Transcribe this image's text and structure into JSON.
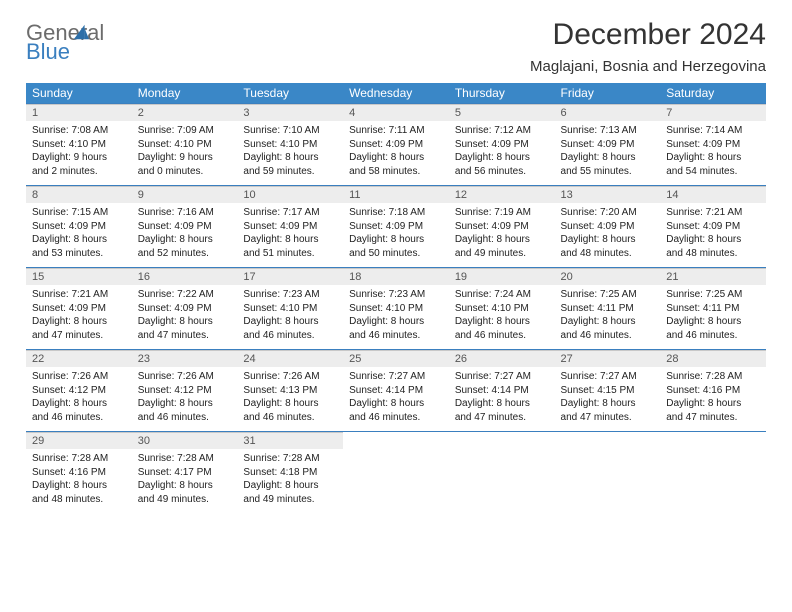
{
  "brand": {
    "line1": "General",
    "line2": "Blue"
  },
  "title": "December 2024",
  "location": "Maglajani, Bosnia and Herzegovina",
  "colors": {
    "header_bg": "#3a87c7",
    "header_text": "#ffffff",
    "daynum_bg": "#ededed",
    "rule": "#3a7fbf",
    "brand_gray": "#6c6c6c",
    "brand_blue": "#3a7fbf"
  },
  "weekdays": [
    "Sunday",
    "Monday",
    "Tuesday",
    "Wednesday",
    "Thursday",
    "Friday",
    "Saturday"
  ],
  "weeks": [
    [
      {
        "n": "1",
        "sr": "Sunrise: 7:08 AM",
        "ss": "Sunset: 4:10 PM",
        "dl": "Daylight: 9 hours and 2 minutes."
      },
      {
        "n": "2",
        "sr": "Sunrise: 7:09 AM",
        "ss": "Sunset: 4:10 PM",
        "dl": "Daylight: 9 hours and 0 minutes."
      },
      {
        "n": "3",
        "sr": "Sunrise: 7:10 AM",
        "ss": "Sunset: 4:10 PM",
        "dl": "Daylight: 8 hours and 59 minutes."
      },
      {
        "n": "4",
        "sr": "Sunrise: 7:11 AM",
        "ss": "Sunset: 4:09 PM",
        "dl": "Daylight: 8 hours and 58 minutes."
      },
      {
        "n": "5",
        "sr": "Sunrise: 7:12 AM",
        "ss": "Sunset: 4:09 PM",
        "dl": "Daylight: 8 hours and 56 minutes."
      },
      {
        "n": "6",
        "sr": "Sunrise: 7:13 AM",
        "ss": "Sunset: 4:09 PM",
        "dl": "Daylight: 8 hours and 55 minutes."
      },
      {
        "n": "7",
        "sr": "Sunrise: 7:14 AM",
        "ss": "Sunset: 4:09 PM",
        "dl": "Daylight: 8 hours and 54 minutes."
      }
    ],
    [
      {
        "n": "8",
        "sr": "Sunrise: 7:15 AM",
        "ss": "Sunset: 4:09 PM",
        "dl": "Daylight: 8 hours and 53 minutes."
      },
      {
        "n": "9",
        "sr": "Sunrise: 7:16 AM",
        "ss": "Sunset: 4:09 PM",
        "dl": "Daylight: 8 hours and 52 minutes."
      },
      {
        "n": "10",
        "sr": "Sunrise: 7:17 AM",
        "ss": "Sunset: 4:09 PM",
        "dl": "Daylight: 8 hours and 51 minutes."
      },
      {
        "n": "11",
        "sr": "Sunrise: 7:18 AM",
        "ss": "Sunset: 4:09 PM",
        "dl": "Daylight: 8 hours and 50 minutes."
      },
      {
        "n": "12",
        "sr": "Sunrise: 7:19 AM",
        "ss": "Sunset: 4:09 PM",
        "dl": "Daylight: 8 hours and 49 minutes."
      },
      {
        "n": "13",
        "sr": "Sunrise: 7:20 AM",
        "ss": "Sunset: 4:09 PM",
        "dl": "Daylight: 8 hours and 48 minutes."
      },
      {
        "n": "14",
        "sr": "Sunrise: 7:21 AM",
        "ss": "Sunset: 4:09 PM",
        "dl": "Daylight: 8 hours and 48 minutes."
      }
    ],
    [
      {
        "n": "15",
        "sr": "Sunrise: 7:21 AM",
        "ss": "Sunset: 4:09 PM",
        "dl": "Daylight: 8 hours and 47 minutes."
      },
      {
        "n": "16",
        "sr": "Sunrise: 7:22 AM",
        "ss": "Sunset: 4:09 PM",
        "dl": "Daylight: 8 hours and 47 minutes."
      },
      {
        "n": "17",
        "sr": "Sunrise: 7:23 AM",
        "ss": "Sunset: 4:10 PM",
        "dl": "Daylight: 8 hours and 46 minutes."
      },
      {
        "n": "18",
        "sr": "Sunrise: 7:23 AM",
        "ss": "Sunset: 4:10 PM",
        "dl": "Daylight: 8 hours and 46 minutes."
      },
      {
        "n": "19",
        "sr": "Sunrise: 7:24 AM",
        "ss": "Sunset: 4:10 PM",
        "dl": "Daylight: 8 hours and 46 minutes."
      },
      {
        "n": "20",
        "sr": "Sunrise: 7:25 AM",
        "ss": "Sunset: 4:11 PM",
        "dl": "Daylight: 8 hours and 46 minutes."
      },
      {
        "n": "21",
        "sr": "Sunrise: 7:25 AM",
        "ss": "Sunset: 4:11 PM",
        "dl": "Daylight: 8 hours and 46 minutes."
      }
    ],
    [
      {
        "n": "22",
        "sr": "Sunrise: 7:26 AM",
        "ss": "Sunset: 4:12 PM",
        "dl": "Daylight: 8 hours and 46 minutes."
      },
      {
        "n": "23",
        "sr": "Sunrise: 7:26 AM",
        "ss": "Sunset: 4:12 PM",
        "dl": "Daylight: 8 hours and 46 minutes."
      },
      {
        "n": "24",
        "sr": "Sunrise: 7:26 AM",
        "ss": "Sunset: 4:13 PM",
        "dl": "Daylight: 8 hours and 46 minutes."
      },
      {
        "n": "25",
        "sr": "Sunrise: 7:27 AM",
        "ss": "Sunset: 4:14 PM",
        "dl": "Daylight: 8 hours and 46 minutes."
      },
      {
        "n": "26",
        "sr": "Sunrise: 7:27 AM",
        "ss": "Sunset: 4:14 PM",
        "dl": "Daylight: 8 hours and 47 minutes."
      },
      {
        "n": "27",
        "sr": "Sunrise: 7:27 AM",
        "ss": "Sunset: 4:15 PM",
        "dl": "Daylight: 8 hours and 47 minutes."
      },
      {
        "n": "28",
        "sr": "Sunrise: 7:28 AM",
        "ss": "Sunset: 4:16 PM",
        "dl": "Daylight: 8 hours and 47 minutes."
      }
    ],
    [
      {
        "n": "29",
        "sr": "Sunrise: 7:28 AM",
        "ss": "Sunset: 4:16 PM",
        "dl": "Daylight: 8 hours and 48 minutes."
      },
      {
        "n": "30",
        "sr": "Sunrise: 7:28 AM",
        "ss": "Sunset: 4:17 PM",
        "dl": "Daylight: 8 hours and 49 minutes."
      },
      {
        "n": "31",
        "sr": "Sunrise: 7:28 AM",
        "ss": "Sunset: 4:18 PM",
        "dl": "Daylight: 8 hours and 49 minutes."
      },
      null,
      null,
      null,
      null
    ]
  ]
}
